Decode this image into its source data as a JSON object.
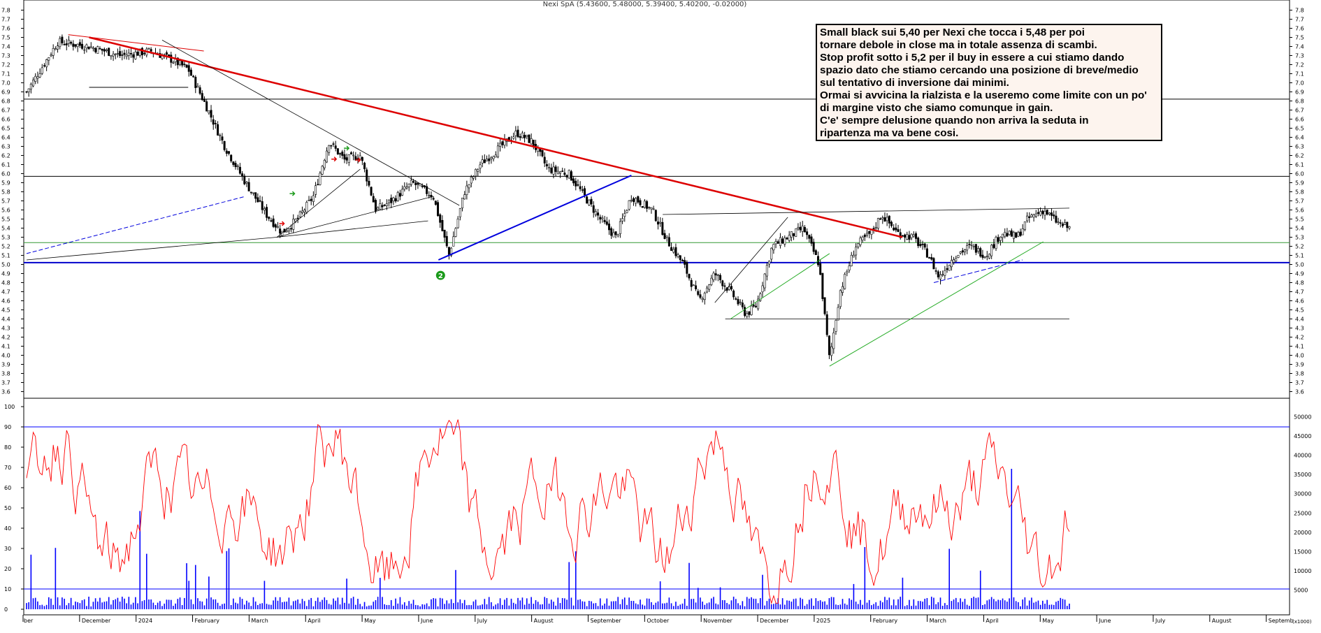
{
  "chart_data": [
    {
      "type": "candlestick",
      "title": "Nexi SpA (5.43600, 5.48000, 5.39400, 5.40200, -0.02000)",
      "ylim": [
        3.55,
        7.85
      ],
      "y_ticks": [
        "7.8",
        "7.7",
        "7.6",
        "7.5",
        "7.4",
        "7.3",
        "7.2",
        "7.1",
        "7.0",
        "6.9",
        "6.8",
        "6.7",
        "6.6",
        "6.5",
        "6.4",
        "6.3",
        "6.2",
        "6.1",
        "6.0",
        "5.9",
        "5.8",
        "5.7",
        "5.6",
        "5.5",
        "5.4",
        "5.3",
        "5.2",
        "5.1",
        "5.0",
        "4.9",
        "4.8",
        "4.7",
        "4.6",
        "4.5",
        "4.4",
        "4.3",
        "4.2",
        "4.1",
        "4.0",
        "3.9",
        "3.8",
        "3.7",
        "3.6"
      ],
      "x_labels": [
        "ber",
        "December",
        "2024",
        "February",
        "March",
        "April",
        "May",
        "June",
        "July",
        "August",
        "September",
        "October",
        "November",
        "December",
        "2025",
        "February",
        "March",
        "April",
        "May",
        "June",
        "July",
        "August",
        "Septemb"
      ],
      "approx_close_path": [
        {
          "x": 0.0,
          "y": 6.9
        },
        {
          "x": 0.03,
          "y": 7.45
        },
        {
          "x": 0.06,
          "y": 7.4
        },
        {
          "x": 0.09,
          "y": 7.3
        },
        {
          "x": 0.12,
          "y": 7.35
        },
        {
          "x": 0.14,
          "y": 7.25
        },
        {
          "x": 0.155,
          "y": 7.15
        },
        {
          "x": 0.17,
          "y": 6.8
        },
        {
          "x": 0.19,
          "y": 6.3
        },
        {
          "x": 0.21,
          "y": 5.9
        },
        {
          "x": 0.23,
          "y": 5.55
        },
        {
          "x": 0.245,
          "y": 5.35
        },
        {
          "x": 0.26,
          "y": 5.5
        },
        {
          "x": 0.275,
          "y": 5.75
        },
        {
          "x": 0.29,
          "y": 6.35
        },
        {
          "x": 0.305,
          "y": 6.15
        },
        {
          "x": 0.32,
          "y": 6.2
        },
        {
          "x": 0.335,
          "y": 5.6
        },
        {
          "x": 0.35,
          "y": 5.7
        },
        {
          "x": 0.37,
          "y": 5.9
        },
        {
          "x": 0.39,
          "y": 5.75
        },
        {
          "x": 0.405,
          "y": 5.1
        },
        {
          "x": 0.42,
          "y": 5.8
        },
        {
          "x": 0.435,
          "y": 6.1
        },
        {
          "x": 0.455,
          "y": 6.3
        },
        {
          "x": 0.47,
          "y": 6.45
        },
        {
          "x": 0.485,
          "y": 6.35
        },
        {
          "x": 0.5,
          "y": 6.05
        },
        {
          "x": 0.52,
          "y": 6.0
        },
        {
          "x": 0.535,
          "y": 5.75
        },
        {
          "x": 0.55,
          "y": 5.5
        },
        {
          "x": 0.565,
          "y": 5.3
        },
        {
          "x": 0.58,
          "y": 5.75
        },
        {
          "x": 0.6,
          "y": 5.6
        },
        {
          "x": 0.615,
          "y": 5.25
        },
        {
          "x": 0.63,
          "y": 5.0
        },
        {
          "x": 0.645,
          "y": 4.6
        },
        {
          "x": 0.66,
          "y": 4.9
        },
        {
          "x": 0.675,
          "y": 4.7
        },
        {
          "x": 0.69,
          "y": 4.45
        },
        {
          "x": 0.7,
          "y": 4.55
        },
        {
          "x": 0.715,
          "y": 5.2
        },
        {
          "x": 0.73,
          "y": 5.3
        },
        {
          "x": 0.745,
          "y": 5.4
        },
        {
          "x": 0.76,
          "y": 5.0
        },
        {
          "x": 0.77,
          "y": 3.95
        },
        {
          "x": 0.78,
          "y": 4.7
        },
        {
          "x": 0.795,
          "y": 5.2
        },
        {
          "x": 0.81,
          "y": 5.35
        },
        {
          "x": 0.82,
          "y": 5.55
        },
        {
          "x": 0.835,
          "y": 5.35
        },
        {
          "x": 0.85,
          "y": 5.3
        },
        {
          "x": 0.865,
          "y": 5.1
        },
        {
          "x": 0.875,
          "y": 4.85
        },
        {
          "x": 0.89,
          "y": 5.1
        },
        {
          "x": 0.905,
          "y": 5.2
        },
        {
          "x": 0.92,
          "y": 5.1
        },
        {
          "x": 0.935,
          "y": 5.35
        },
        {
          "x": 0.95,
          "y": 5.3
        },
        {
          "x": 0.96,
          "y": 5.5
        },
        {
          "x": 0.975,
          "y": 5.6
        },
        {
          "x": 0.99,
          "y": 5.45
        },
        {
          "x": 1.0,
          "y": 5.4
        }
      ],
      "horizontal_levels": [
        {
          "y": 6.82,
          "color": "#000000"
        },
        {
          "y": 5.97,
          "color": "#000000"
        },
        {
          "y": 5.24,
          "color": "#339933"
        },
        {
          "y": 5.02,
          "color": "#0000cc"
        }
      ],
      "annotations": {
        "marker_label": "2",
        "comment_lines": [
          "Small black sui 5,40 per Nexi che tocca i 5,48 per poi",
          "tornare debole in close ma in totale assenza di scambi.",
          "Stop profit sotto i 5,2 per il buy in essere a cui stiamo dando",
          "spazio dato che stiamo cercando una posizione di breve/medio",
          "sul tentativo di inversione dai minimi.",
          "Ormai si avvicina la rialzista e la useremo come limite con un po'",
          "di margine visto che siamo comunque in gain.",
          "C'e' sempre delusione quando non arriva la seduta in",
          "ripartenza ma va bene cosi."
        ]
      },
      "colors": {
        "trend_red": "#dd0000",
        "trend_blue": "#0000dd",
        "trend_green": "#22aa22",
        "candle": "#000000"
      }
    },
    {
      "type": "line",
      "name": "oscillator_and_volume",
      "left_ticks": [
        "100",
        "90",
        "80",
        "70",
        "60",
        "50",
        "40",
        "30",
        "20",
        "10",
        "0"
      ],
      "right_ticks": [
        "50000",
        "45000",
        "40000",
        "35000",
        "30000",
        "25000",
        "20000",
        "15000",
        "10000",
        "5000"
      ],
      "right_axis_note": "(x1000)",
      "oscillator_ylim": [
        0,
        100
      ],
      "oscillator_levels": [
        90,
        10
      ],
      "volume_ylim": [
        0,
        50000
      ],
      "colors": {
        "oscillator": "#ff0000",
        "volume": "#0000ff",
        "levels": "#0000ff"
      }
    }
  ]
}
